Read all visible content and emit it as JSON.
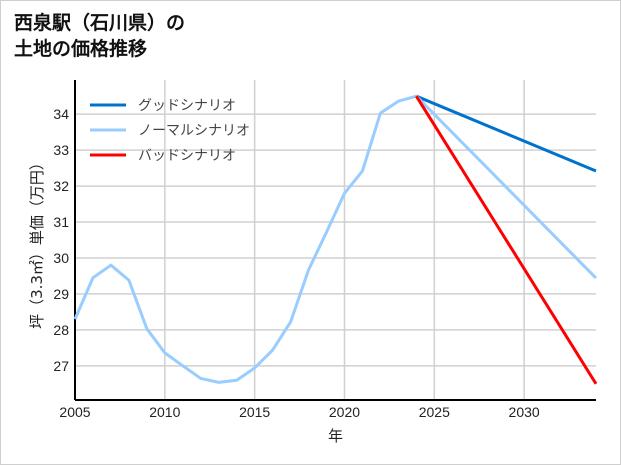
{
  "title_lines": [
    "西泉駅（石川県）の",
    "土地の価格推移"
  ],
  "chart_data": {
    "type": "line",
    "title": "西泉駅（石川県）の土地の価格推移",
    "xlabel": "年",
    "ylabel": "坪（3.3㎡）単価（万円）",
    "xlim": [
      2005,
      2034
    ],
    "ylim": [
      26.05,
      34.95
    ],
    "xticks": [
      2005,
      2010,
      2015,
      2020,
      2025,
      2030
    ],
    "yticks": [
      27,
      28,
      29,
      30,
      31,
      32,
      33,
      34
    ],
    "grid": true,
    "legend_position": "top-left",
    "series": [
      {
        "name": "グッドシナリオ",
        "color": "#0072cc",
        "x": [
          2024,
          2034
        ],
        "y": [
          34.5,
          32.42
        ]
      },
      {
        "name": "ノーマルシナリオ",
        "color": "#99ccff",
        "x": [
          2005,
          2006,
          2007,
          2008,
          2009,
          2010,
          2011,
          2012,
          2013,
          2014,
          2015,
          2016,
          2017,
          2018,
          2019,
          2020,
          2021,
          2022,
          2023,
          2024,
          2034
        ],
        "y": [
          28.3,
          29.45,
          29.8,
          29.38,
          28.03,
          27.36,
          27.0,
          26.65,
          26.54,
          26.6,
          26.94,
          27.44,
          28.22,
          29.67,
          30.72,
          31.8,
          32.42,
          34.03,
          34.36,
          34.5,
          29.44
        ]
      },
      {
        "name": "バッドシナリオ",
        "color": "#ff0000",
        "x": [
          2024,
          2034
        ],
        "y": [
          34.5,
          26.5
        ]
      }
    ]
  }
}
